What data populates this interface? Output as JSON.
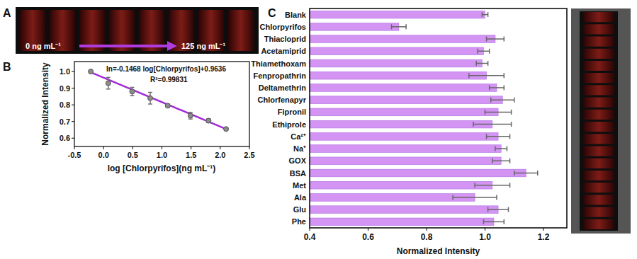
{
  "chart_data": [
    {
      "type": "image",
      "title": "A",
      "annotations": [
        "0 ng mL⁻¹",
        "125 ng mL⁻¹"
      ]
    },
    {
      "type": "scatter",
      "title": "B",
      "x_label": "log [Chlorpyrifos](ng mL⁻¹)",
      "y_label": "Normalized Intensity",
      "annotations": [
        "In=-0.1468 log[Chlorpyrifos]+0.9636",
        "R²=0.99831"
      ],
      "xlim": [
        -0.5,
        2.5
      ],
      "xticks": [
        -0.5,
        {
          "value": 0,
          "label": "0.0"
        },
        0.5,
        {
          "value": 1,
          "label": "1.0"
        },
        1.5,
        {
          "value": 2,
          "label": "2.0"
        },
        2.5
      ],
      "ylim": [
        0.55,
        1.06
      ],
      "yticks": [
        0.6,
        0.7,
        0.8,
        0.9,
        {
          "value": 1,
          "label": "1.0"
        }
      ],
      "series": [
        {
          "type": "scatter",
          "color": "#8c8c8c",
          "marker": "circle",
          "x": [
            -0.22,
            0.08,
            0.49,
            0.8,
            1.1,
            1.49,
            1.8,
            2.1
          ],
          "values": [
            1.0,
            0.93,
            0.88,
            0.84,
            0.795,
            0.735,
            0.705,
            0.655
          ],
          "errors": [
            0.01,
            0.035,
            0.025,
            0.035,
            0.01,
            0.02,
            0.012,
            0.005
          ]
        },
        {
          "type": "line",
          "color": "#a22bd6",
          "line_style": "solid",
          "x": [
            -0.22,
            2.1
          ],
          "values": [
            0.996,
            0.655
          ]
        }
      ]
    },
    {
      "type": "bar",
      "title": "C",
      "orientation": "horizontal",
      "color": "#d394f3",
      "x_label": "Normalized Intensity",
      "categories": [
        "Blank",
        "Chlorpyrifos",
        "Thiacloprid",
        "Acetamiprid",
        "Thiamethoxam",
        "Fenpropathrin",
        "Deltamethrin",
        "Chlorfenapyr",
        "Fipronil",
        "Ethiprole",
        "Ca²⁺",
        "Na⁺",
        "GOX",
        "BSA",
        "Met",
        "Ala",
        "Glu",
        "Phe"
      ],
      "values": [
        1.0,
        0.705,
        1.035,
        0.995,
        0.99,
        1.005,
        1.04,
        1.06,
        1.045,
        1.025,
        1.045,
        1.055,
        1.055,
        1.14,
        1.025,
        0.965,
        1.045,
        1.03
      ],
      "errors": [
        0.01,
        0.025,
        0.03,
        0.02,
        0.02,
        0.06,
        0.025,
        0.04,
        0.045,
        0.065,
        0.04,
        0.02,
        0.03,
        0.04,
        0.06,
        0.075,
        0.035,
        0.035
      ],
      "xlim": [
        0.4,
        1.28
      ],
      "xticks": [
        0.4,
        0.6,
        0.8,
        {
          "value": 1,
          "label": "1.0"
        },
        1.2
      ]
    }
  ]
}
